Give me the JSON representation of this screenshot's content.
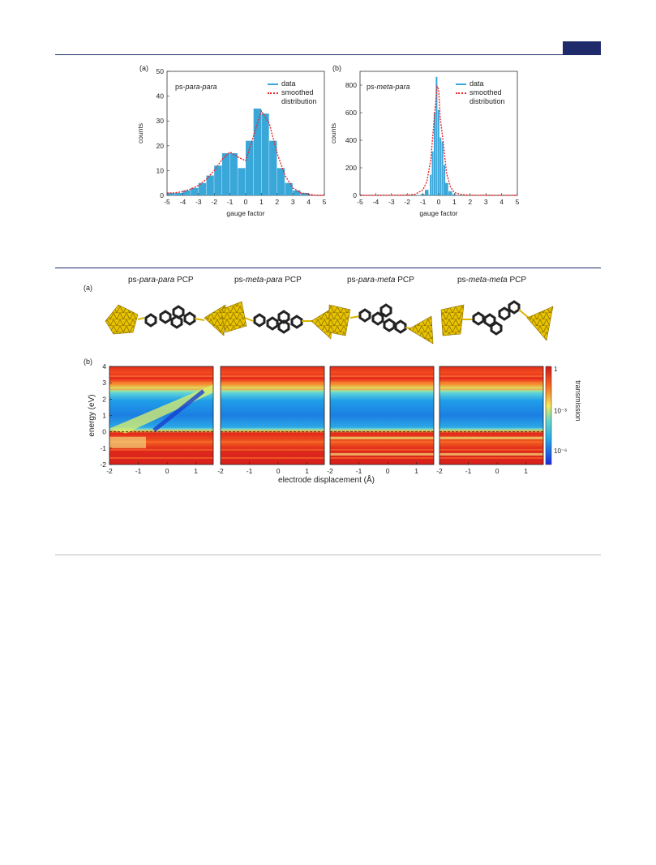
{
  "colors": {
    "top_rule": "#1f2a6b",
    "mid_rule": "#1f2a6b",
    "bottom_rule": "#bbbbbb",
    "hist_fill": "#3aa7d9",
    "smooth_line": "#e8262b",
    "gold": "#d9b400"
  },
  "figure1": {
    "panel_a": {
      "tag": "(a)",
      "name_prefix": "ps-",
      "name_italic": "para-para"
    },
    "panel_b": {
      "tag": "(b)",
      "name_prefix": "ps-",
      "name_italic": "meta-para"
    },
    "legend_data": "data",
    "legend_smooth_1": "smoothed",
    "legend_smooth_2": "distribution"
  },
  "figure2": {
    "panel_a_tag": "(a)",
    "panel_b_tag": "(b)",
    "column_titles": [
      {
        "prefix": "ps-",
        "italic": "para-para",
        "suffix": " PCP"
      },
      {
        "prefix": "ps-",
        "italic": "meta-para",
        "suffix": " PCP"
      },
      {
        "prefix": "ps-",
        "italic": "para-meta",
        "suffix": " PCP"
      },
      {
        "prefix": "ps-",
        "italic": "meta-meta",
        "suffix": " PCP"
      }
    ],
    "colorbar_label": "transmission",
    "colorbar_ticks": [
      "1",
      "10⁻³",
      "10⁻⁶"
    ]
  },
  "chart_data": [
    {
      "type": "bar",
      "title": "ps-para-para",
      "xlabel": "gauge factor",
      "ylabel": "counts",
      "xlim": [
        -5,
        5
      ],
      "ylim": [
        0,
        50
      ],
      "xticks": [
        "-5",
        "-4",
        "-3",
        "-2",
        "-1",
        "0",
        "1",
        "2",
        "3",
        "4",
        "5"
      ],
      "yticks": [
        "0",
        "10",
        "20",
        "30",
        "40",
        "50"
      ],
      "legend": [
        "data",
        "smoothed distribution"
      ],
      "legend_position": "top-right",
      "series": [
        {
          "name": "data",
          "kind": "histogram",
          "x": [
            -4.75,
            -4.25,
            -3.75,
            -3.25,
            -2.75,
            -2.25,
            -1.75,
            -1.25,
            -0.75,
            -0.25,
            0.25,
            0.75,
            1.25,
            1.75,
            2.25,
            2.75,
            3.25,
            3.75,
            4.25,
            4.75
          ],
          "values": [
            1,
            1,
            2,
            3,
            5,
            8,
            12,
            17,
            17,
            11,
            22,
            35,
            33,
            22,
            11,
            5,
            2,
            1,
            0,
            0
          ]
        },
        {
          "name": "smoothed distribution",
          "kind": "line",
          "x": [
            -5,
            -4.5,
            -4,
            -3.5,
            -3,
            -2.5,
            -2,
            -1.5,
            -1,
            -0.5,
            0,
            0.5,
            1,
            1.5,
            2,
            2.5,
            3,
            3.5,
            4,
            4.5,
            5
          ],
          "values": [
            1,
            1,
            1.5,
            2.5,
            4,
            6.5,
            10,
            14.5,
            17.5,
            15.5,
            14,
            24,
            34,
            29,
            17,
            8,
            3,
            1,
            0.5,
            0,
            0
          ]
        }
      ]
    },
    {
      "type": "bar",
      "title": "ps-meta-para",
      "xlabel": "gauge factor",
      "ylabel": "counts",
      "xlim": [
        -5,
        5
      ],
      "ylim": [
        0,
        900
      ],
      "xticks": [
        "-5",
        "-4",
        "-3",
        "-2",
        "-1",
        "0",
        "1",
        "2",
        "3",
        "4",
        "5"
      ],
      "yticks": [
        "0",
        "200",
        "400",
        "600",
        "800"
      ],
      "legend": [
        "data",
        "smoothed distribution"
      ],
      "legend_position": "top-right",
      "series": [
        {
          "name": "data",
          "kind": "histogram",
          "x": [
            -1.25,
            -1.0,
            -0.75,
            -0.5,
            -0.375,
            -0.25,
            -0.125,
            0.0,
            0.125,
            0.25,
            0.375,
            0.5,
            0.75,
            1.0,
            1.25
          ],
          "values": [
            3,
            10,
            40,
            150,
            320,
            600,
            860,
            620,
            420,
            390,
            220,
            90,
            30,
            8,
            2
          ]
        },
        {
          "name": "smoothed distribution",
          "kind": "line",
          "x": [
            -5,
            -2,
            -1.5,
            -1,
            -0.75,
            -0.5,
            -0.25,
            -0.1,
            0,
            0.1,
            0.25,
            0.5,
            0.75,
            1,
            1.5,
            2,
            5
          ],
          "values": [
            0,
            2,
            8,
            40,
            100,
            260,
            600,
            790,
            770,
            560,
            420,
            160,
            60,
            20,
            5,
            1,
            0
          ]
        }
      ]
    },
    {
      "type": "heatmap",
      "xlabel": "electrode displacement (Å)",
      "ylabel": "energy (eV)",
      "ylim": [
        -2,
        4
      ],
      "panels": [
        {
          "title": "ps-para-para PCP",
          "xlim": [
            -2,
            1.6
          ],
          "xticks": [
            "-2",
            "-1",
            "0",
            "1"
          ]
        },
        {
          "title": "ps-meta-para PCP",
          "xlim": [
            -2,
            1.6
          ],
          "xticks": [
            "-2",
            "-1",
            "0",
            "1"
          ]
        },
        {
          "title": "ps-para-meta PCP",
          "xlim": [
            -2,
            1.6
          ],
          "xticks": [
            "-2",
            "-1",
            "0",
            "1"
          ]
        },
        {
          "title": "ps-meta-meta PCP",
          "xlim": [
            -2,
            1.6
          ],
          "xticks": [
            "-2",
            "-1",
            "0",
            "1"
          ]
        }
      ],
      "yticks": [
        "-2",
        "-1",
        "0",
        "1",
        "2",
        "3",
        "4"
      ],
      "colorbar": {
        "label": "transmission",
        "scale": "log",
        "range": [
          1e-06,
          1
        ]
      },
      "reference_line": {
        "energy": 0,
        "style": "dashed"
      }
    }
  ]
}
